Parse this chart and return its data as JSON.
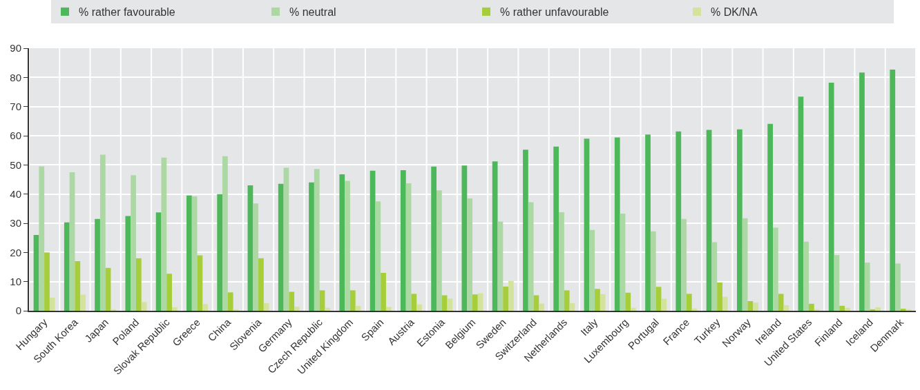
{
  "chart_data": {
    "type": "bar",
    "categories": [
      "Hungary",
      "South Korea",
      "Japan",
      "Poland",
      "Slovak Republic",
      "Greece",
      "China",
      "Slovenia",
      "Germany",
      "Czech Republic",
      "United Kingdom",
      "Spain",
      "Austria",
      "Estonia",
      "Belgium",
      "Sweden",
      "Switzerland",
      "Netherlands",
      "Italy",
      "Luxembourg",
      "Portugal",
      "France",
      "Turkey",
      "Norway",
      "Ireland",
      "United States",
      "Finland",
      "Iceland",
      "Denmark"
    ],
    "series": [
      {
        "name": "% rather favourable",
        "color": "#4db85a",
        "values": [
          26,
          30.3,
          31.5,
          32.5,
          33.7,
          39.5,
          40,
          43,
          43.5,
          44,
          46.8,
          48,
          48.2,
          49.4,
          49.8,
          51.2,
          55.2,
          56.3,
          59,
          59.4,
          60.4,
          61.5,
          62,
          62.2,
          64.1,
          73.4,
          78.2,
          81.7,
          82.7
        ]
      },
      {
        "name": "% neutral",
        "color": "#acd8a4",
        "values": [
          49.5,
          47.5,
          53.5,
          46.5,
          52.5,
          39.2,
          53,
          36.8,
          49,
          48.6,
          44.5,
          37.5,
          43.7,
          41.3,
          38.5,
          30.6,
          37.2,
          33.8,
          27.7,
          33.3,
          27.2,
          31.5,
          23.5,
          31.7,
          28.5,
          23.7,
          19.1,
          16.5,
          16.2
        ]
      },
      {
        "name": "% rather unfavourable",
        "color": "#a6cd3a",
        "values": [
          20,
          17,
          14.7,
          18,
          12.7,
          19,
          6.3,
          18,
          6.5,
          7,
          7,
          13,
          5.8,
          5.3,
          5.6,
          8.3,
          5.3,
          7,
          7.5,
          6.2,
          8.2,
          5.8,
          9.7,
          3.3,
          5.8,
          2.4,
          1.7,
          0.5,
          0.7
        ]
      },
      {
        "name": "% DK/NA",
        "color": "#d4e39c",
        "values": [
          4.5,
          5.5,
          0.5,
          3,
          1.2,
          2.3,
          0.5,
          2.6,
          1.4,
          1,
          1.7,
          1.3,
          2.2,
          4.2,
          6,
          10.2,
          2.5,
          2.6,
          5.7,
          1,
          4.1,
          0.8,
          4.8,
          2.8,
          1.9,
          0.5,
          1.0,
          1.2,
          0.5
        ]
      }
    ],
    "ylim": [
      0,
      90
    ],
    "yticks": [
      0,
      10,
      20,
      30,
      40,
      50,
      60,
      70,
      80,
      90
    ],
    "grid": true,
    "legend": "top"
  }
}
